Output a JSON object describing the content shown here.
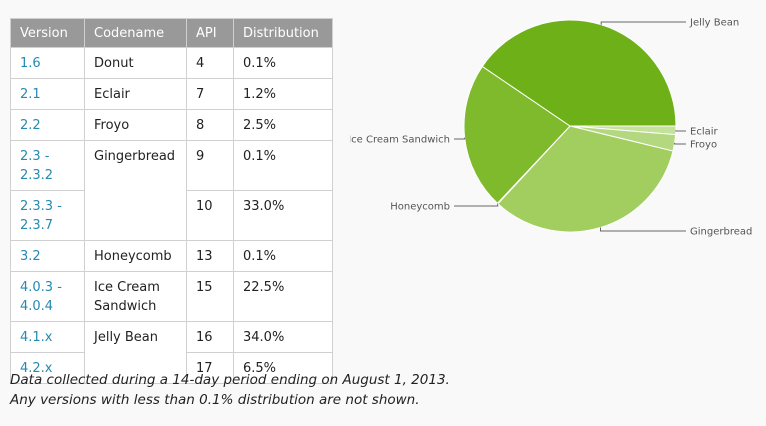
{
  "table": {
    "headers": [
      "Version",
      "Codename",
      "API",
      "Distribution"
    ],
    "rows": [
      {
        "version": "1.6",
        "codename": "Donut",
        "api": "4",
        "distribution": "0.1%"
      },
      {
        "version": "2.1",
        "codename": "Eclair",
        "api": "7",
        "distribution": "1.2%"
      },
      {
        "version": "2.2",
        "codename": "Froyo",
        "api": "8",
        "distribution": "2.5%"
      },
      {
        "version": "2.3 -\n2.3.2",
        "codename": "Gingerbread",
        "api": "9",
        "distribution": "0.1%"
      },
      {
        "version": "2.3.3 -\n2.3.7",
        "codename": "",
        "api": "10",
        "distribution": "33.0%"
      },
      {
        "version": "3.2",
        "codename": "Honeycomb",
        "api": "13",
        "distribution": "0.1%"
      },
      {
        "version": "4.0.3 -\n4.0.4",
        "codename": "Ice Cream\nSandwich",
        "api": "15",
        "distribution": "22.5%"
      },
      {
        "version": "4.1.x",
        "codename": "Jelly Bean",
        "api": "16",
        "distribution": "34.0%"
      },
      {
        "version": "4.2.x",
        "codename": "",
        "api": "17",
        "distribution": "6.5%"
      }
    ]
  },
  "note": {
    "line1": "Data collected during a 14-day period ending on August 1, 2013.",
    "line2": "Any versions with less than 0.1% distribution are not shown."
  },
  "chart_data": {
    "type": "pie",
    "slices": [
      {
        "label": "Eclair",
        "value": 1.3,
        "color": "#c5e29a"
      },
      {
        "label": "Froyo",
        "value": 2.5,
        "color": "#b4d87f"
      },
      {
        "label": "Gingerbread",
        "value": 33.1,
        "color": "#a2cd5f"
      },
      {
        "label": "Honeycomb",
        "value": 0.1,
        "color": "#8dc13f"
      },
      {
        "label": "Ice Cream Sandwich",
        "value": 22.5,
        "color": "#7fba2d"
      },
      {
        "label": "Jelly Bean",
        "value": 40.5,
        "color": "#6eb017"
      }
    ]
  }
}
